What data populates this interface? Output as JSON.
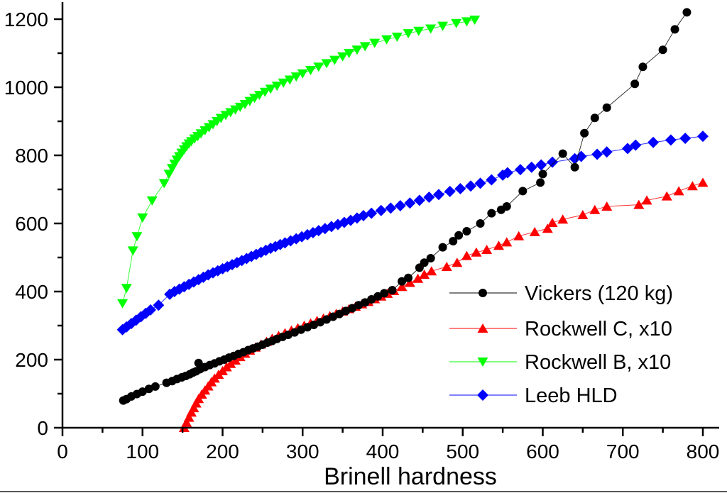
{
  "chart_data": {
    "type": "scatter",
    "title": "",
    "xlabel": "Brinell hardness",
    "ylabel": "",
    "xlim": [
      0,
      820
    ],
    "ylim": [
      0,
      1260
    ],
    "x_ticks": [
      0,
      100,
      200,
      300,
      400,
      500,
      600,
      700,
      800
    ],
    "x_tick_labels": [
      "0",
      "100",
      "200",
      "300",
      "400",
      "500",
      "600",
      "700",
      "800"
    ],
    "y_ticks": [
      0,
      200,
      400,
      600,
      800,
      1000,
      1200
    ],
    "y_tick_labels": [
      "0",
      "200",
      "400",
      "600",
      "800",
      "1000",
      "1200"
    ],
    "grid": false,
    "legend_position": "bottom-right",
    "series": [
      {
        "name": "Vickers (120 kg)",
        "color": "#000000",
        "marker": "circle",
        "points": [
          [
            76,
            80
          ],
          [
            80,
            84
          ],
          [
            86,
            92
          ],
          [
            93,
            99
          ],
          [
            100,
            106
          ],
          [
            108,
            114
          ],
          [
            116,
            121
          ],
          [
            130,
            132
          ],
          [
            137,
            137
          ],
          [
            143,
            143
          ],
          [
            149,
            148
          ],
          [
            154,
            152
          ],
          [
            159,
            157
          ],
          [
            163,
            162
          ],
          [
            167,
            166
          ],
          [
            170,
            190
          ],
          [
            172,
            172
          ],
          [
            178,
            178
          ],
          [
            184,
            184
          ],
          [
            190,
            189
          ],
          [
            196,
            195
          ],
          [
            202,
            200
          ],
          [
            208,
            206
          ],
          [
            214,
            211
          ],
          [
            220,
            217
          ],
          [
            226,
            222
          ],
          [
            232,
            228
          ],
          [
            238,
            233
          ],
          [
            244,
            238
          ],
          [
            250,
            244
          ],
          [
            256,
            250
          ],
          [
            262,
            255
          ],
          [
            268,
            261
          ],
          [
            275,
            267
          ],
          [
            282,
            273
          ],
          [
            290,
            280
          ],
          [
            298,
            288
          ],
          [
            306,
            295
          ],
          [
            314,
            302
          ],
          [
            322,
            310
          ],
          [
            330,
            318
          ],
          [
            338,
            326
          ],
          [
            346,
            334
          ],
          [
            354,
            343
          ],
          [
            362,
            351
          ],
          [
            370,
            360
          ],
          [
            378,
            368
          ],
          [
            386,
            377
          ],
          [
            394,
            386
          ],
          [
            402,
            395
          ],
          [
            412,
            404
          ],
          [
            424,
            430
          ],
          [
            432,
            440
          ],
          [
            446,
            470
          ],
          [
            452,
            485
          ],
          [
            460,
            498
          ],
          [
            475,
            530
          ],
          [
            488,
            548
          ],
          [
            495,
            565
          ],
          [
            505,
            577
          ],
          [
            522,
            600
          ],
          [
            536,
            630
          ],
          [
            548,
            640
          ],
          [
            555,
            650
          ],
          [
            575,
            695
          ],
          [
            597,
            720
          ],
          [
            600,
            745
          ],
          [
            625,
            805
          ],
          [
            640,
            765
          ],
          [
            652,
            865
          ],
          [
            665,
            910
          ],
          [
            680,
            940
          ],
          [
            715,
            1010
          ],
          [
            725,
            1060
          ],
          [
            750,
            1110
          ],
          [
            765,
            1170
          ],
          [
            780,
            1220
          ]
        ]
      },
      {
        "name": "Rockwell C, x10",
        "color": "#ff0000",
        "marker": "triangle-up",
        "points": [
          [
            152,
            0
          ],
          [
            155,
            15
          ],
          [
            158,
            30
          ],
          [
            161,
            45
          ],
          [
            164,
            58
          ],
          [
            167,
            72
          ],
          [
            170,
            85
          ],
          [
            174,
            98
          ],
          [
            178,
            110
          ],
          [
            182,
            122
          ],
          [
            186,
            134
          ],
          [
            190,
            145
          ],
          [
            195,
            156
          ],
          [
            200,
            167
          ],
          [
            205,
            178
          ],
          [
            210,
            188
          ],
          [
            216,
            198
          ],
          [
            222,
            208
          ],
          [
            228,
            218
          ],
          [
            234,
            227
          ],
          [
            241,
            236
          ],
          [
            248,
            245
          ],
          [
            255,
            253
          ],
          [
            262,
            262
          ],
          [
            270,
            270
          ],
          [
            278,
            278
          ],
          [
            286,
            286
          ],
          [
            294,
            293
          ],
          [
            302,
            300
          ],
          [
            310,
            307
          ],
          [
            318,
            314
          ],
          [
            326,
            321
          ],
          [
            334,
            328
          ],
          [
            342,
            335
          ],
          [
            350,
            342
          ],
          [
            358,
            349
          ],
          [
            366,
            356
          ],
          [
            374,
            363
          ],
          [
            382,
            370
          ],
          [
            390,
            378
          ],
          [
            398,
            386
          ],
          [
            406,
            394
          ],
          [
            414,
            402
          ],
          [
            424,
            414
          ],
          [
            434,
            426
          ],
          [
            444,
            438
          ],
          [
            452,
            450
          ],
          [
            461,
            460
          ],
          [
            480,
            473
          ],
          [
            493,
            485
          ],
          [
            505,
            505
          ],
          [
            517,
            515
          ],
          [
            530,
            523
          ],
          [
            545,
            535
          ],
          [
            555,
            545
          ],
          [
            570,
            563
          ],
          [
            590,
            575
          ],
          [
            606,
            585
          ],
          [
            612,
            602
          ],
          [
            625,
            612
          ],
          [
            650,
            625
          ],
          [
            665,
            640
          ],
          [
            680,
            650
          ],
          [
            720,
            655
          ],
          [
            730,
            668
          ],
          [
            755,
            680
          ],
          [
            770,
            695
          ],
          [
            787,
            710
          ],
          [
            800,
            720
          ]
        ]
      },
      {
        "name": "Rockwell B, x10",
        "color": "#00ff00",
        "marker": "triangle-down",
        "points": [
          [
            75,
            365
          ],
          [
            80,
            410
          ],
          [
            88,
            520
          ],
          [
            93,
            562
          ],
          [
            100,
            617
          ],
          [
            112,
            667
          ],
          [
            127,
            718
          ],
          [
            133,
            745
          ],
          [
            137,
            762
          ],
          [
            140,
            775
          ],
          [
            143,
            787
          ],
          [
            146,
            797
          ],
          [
            149,
            807
          ],
          [
            152,
            817
          ],
          [
            155,
            826
          ],
          [
            158,
            834
          ],
          [
            161,
            841
          ],
          [
            165,
            849
          ],
          [
            169,
            856
          ],
          [
            173,
            864
          ],
          [
            178,
            873
          ],
          [
            183,
            882
          ],
          [
            188,
            891
          ],
          [
            193,
            900
          ],
          [
            198,
            909
          ],
          [
            204,
            918
          ],
          [
            210,
            926
          ],
          [
            216,
            934
          ],
          [
            222,
            942
          ],
          [
            228,
            950
          ],
          [
            234,
            959
          ],
          [
            240,
            968
          ],
          [
            246,
            977
          ],
          [
            253,
            986
          ],
          [
            260,
            995
          ],
          [
            268,
            1004
          ],
          [
            276,
            1013
          ],
          [
            284,
            1022
          ],
          [
            292,
            1031
          ],
          [
            300,
            1040
          ],
          [
            310,
            1050
          ],
          [
            320,
            1060
          ],
          [
            330,
            1070
          ],
          [
            340,
            1080
          ],
          [
            350,
            1090
          ],
          [
            358,
            1100
          ],
          [
            368,
            1110
          ],
          [
            378,
            1120
          ],
          [
            390,
            1130
          ],
          [
            405,
            1140
          ],
          [
            418,
            1148
          ],
          [
            432,
            1158
          ],
          [
            445,
            1165
          ],
          [
            460,
            1172
          ],
          [
            475,
            1180
          ],
          [
            492,
            1188
          ],
          [
            505,
            1193
          ],
          [
            515,
            1198
          ]
        ]
      },
      {
        "name": "Leeb HLD",
        "color": "#0000ff",
        "marker": "diamond",
        "points": [
          [
            75,
            288
          ],
          [
            80,
            296
          ],
          [
            86,
            306
          ],
          [
            92,
            316
          ],
          [
            98,
            326
          ],
          [
            104,
            336
          ],
          [
            110,
            346
          ],
          [
            120,
            360
          ],
          [
            134,
            392
          ],
          [
            140,
            400
          ],
          [
            146,
            407
          ],
          [
            152,
            414
          ],
          [
            158,
            421
          ],
          [
            164,
            428
          ],
          [
            170,
            435
          ],
          [
            176,
            442
          ],
          [
            182,
            449
          ],
          [
            188,
            455
          ],
          [
            194,
            461
          ],
          [
            200,
            467
          ],
          [
            206,
            473
          ],
          [
            212,
            479
          ],
          [
            218,
            485
          ],
          [
            224,
            491
          ],
          [
            230,
            497
          ],
          [
            236,
            503
          ],
          [
            242,
            509
          ],
          [
            248,
            515
          ],
          [
            254,
            521
          ],
          [
            260,
            527
          ],
          [
            266,
            532
          ],
          [
            272,
            538
          ],
          [
            278,
            543
          ],
          [
            285,
            549
          ],
          [
            292,
            555
          ],
          [
            299,
            561
          ],
          [
            306,
            567
          ],
          [
            313,
            573
          ],
          [
            320,
            579
          ],
          [
            328,
            585
          ],
          [
            336,
            591
          ],
          [
            344,
            597
          ],
          [
            352,
            603
          ],
          [
            360,
            609
          ],
          [
            368,
            616
          ],
          [
            376,
            623
          ],
          [
            386,
            630
          ],
          [
            398,
            638
          ],
          [
            410,
            645
          ],
          [
            422,
            652
          ],
          [
            434,
            660
          ],
          [
            446,
            668
          ],
          [
            458,
            677
          ],
          [
            470,
            685
          ],
          [
            484,
            694
          ],
          [
            497,
            702
          ],
          [
            510,
            710
          ],
          [
            522,
            718
          ],
          [
            536,
            728
          ],
          [
            550,
            742
          ],
          [
            556,
            749
          ],
          [
            572,
            758
          ],
          [
            586,
            765
          ],
          [
            598,
            772
          ],
          [
            612,
            780
          ],
          [
            640,
            790
          ],
          [
            648,
            797
          ],
          [
            668,
            803
          ],
          [
            680,
            810
          ],
          [
            706,
            820
          ],
          [
            716,
            830
          ],
          [
            738,
            838
          ],
          [
            760,
            845
          ],
          [
            778,
            850
          ],
          [
            800,
            856
          ]
        ]
      }
    ]
  }
}
